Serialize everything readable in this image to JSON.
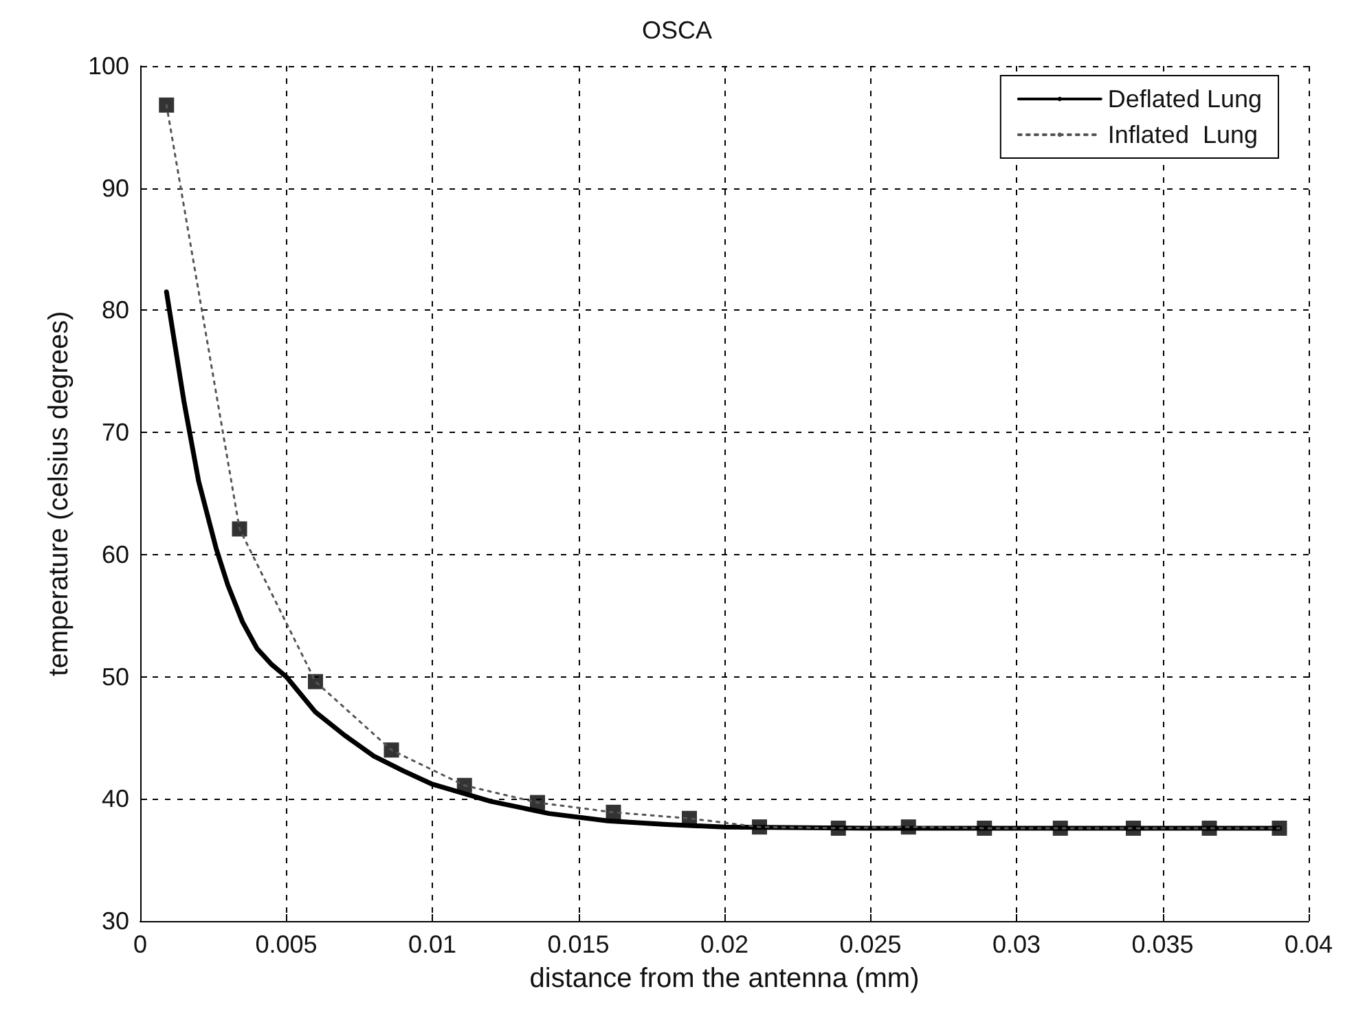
{
  "chart_data": {
    "type": "line",
    "title": "OSCA",
    "xlabel": "distance from the antenna (mm)",
    "ylabel": "temperature (celsius degrees)",
    "xlim": [
      0,
      0.04
    ],
    "xticks": [
      0,
      0.005,
      0.01,
      0.015,
      0.02,
      0.025,
      0.03,
      0.035,
      0.04
    ],
    "ylim": [
      30,
      100
    ],
    "yticks": [
      30,
      40,
      50,
      60,
      70,
      80,
      90,
      100
    ],
    "grid": true,
    "legend": "top right",
    "series": [
      {
        "name": "Deflated Lung",
        "color": "#000000",
        "line_style": "solid",
        "marker": "none",
        "x": [
          0.0009,
          0.0015,
          0.002,
          0.0026,
          0.003,
          0.0035,
          0.004,
          0.0045,
          0.005,
          0.006,
          0.007,
          0.008,
          0.009,
          0.01,
          0.012,
          0.014,
          0.016,
          0.018,
          0.02,
          0.025,
          0.03,
          0.035,
          0.039
        ],
        "values": [
          81.5,
          72.5,
          66,
          60.5,
          57.5,
          54.5,
          52.3,
          51,
          50,
          47.1,
          45.2,
          43.5,
          42.3,
          41.2,
          39.8,
          38.8,
          38.2,
          37.9,
          37.7,
          37.6,
          37.6,
          37.6,
          37.6
        ]
      },
      {
        "name": "Inflated  Lung",
        "color": "#555555",
        "line_style": "dotted",
        "marker": "none",
        "x": [
          0.0009,
          0.0034,
          0.006,
          0.0086,
          0.0111,
          0.0136,
          0.0162,
          0.0188,
          0.0212,
          0.0239,
          0.0263,
          0.0289,
          0.0315,
          0.034,
          0.0366,
          0.039
        ],
        "values": [
          96.8,
          62.1,
          49.6,
          44,
          41.1,
          39.7,
          38.9,
          38.4,
          37.7,
          37.6,
          37.7,
          37.6,
          37.6,
          37.6,
          37.6,
          37.6
        ]
      },
      {
        "type": "scatter",
        "color": "#000000",
        "marker": "square",
        "x": [
          0.0009,
          0.0034,
          0.006,
          0.0086,
          0.0111,
          0.0136,
          0.0162,
          0.0188,
          0.0212,
          0.0239,
          0.0263,
          0.0289,
          0.0315,
          0.034,
          0.0366,
          0.039
        ],
        "values": [
          96.8,
          62.1,
          49.6,
          44,
          41.1,
          39.7,
          38.9,
          38.4,
          37.7,
          37.6,
          37.7,
          37.6,
          37.6,
          37.6,
          37.6,
          37.6
        ]
      }
    ]
  }
}
